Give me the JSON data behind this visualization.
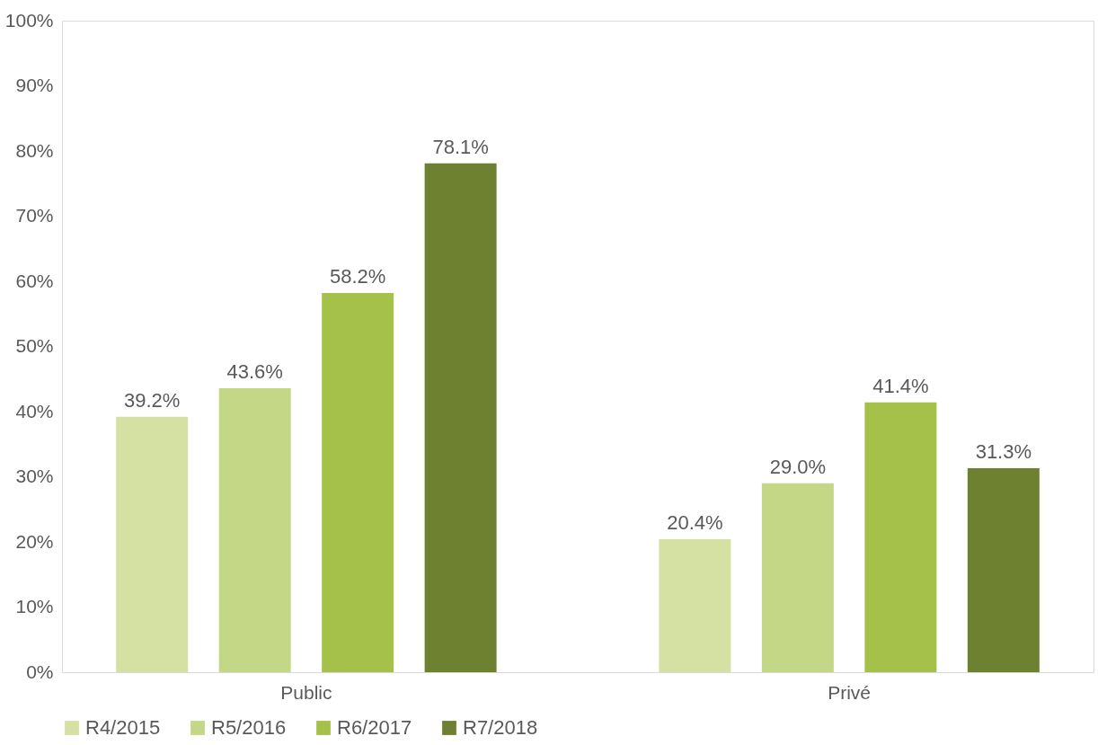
{
  "chart_data": {
    "type": "bar",
    "categories": [
      "Public",
      "Privé"
    ],
    "series": [
      {
        "name": "R4/2015",
        "color": "#d5e1a3",
        "values": [
          39.2,
          20.4
        ],
        "value_labels": [
          "39.2%",
          "20.4%"
        ]
      },
      {
        "name": "R5/2016",
        "color": "#c4d787",
        "values": [
          43.6,
          29.0
        ],
        "value_labels": [
          "43.6%",
          "29.0%"
        ]
      },
      {
        "name": "R6/2017",
        "color": "#a6c14a",
        "values": [
          58.2,
          41.4
        ],
        "value_labels": [
          "58.2%",
          "41.4%"
        ]
      },
      {
        "name": "R7/2018",
        "color": "#6e8130",
        "values": [
          78.1,
          31.3
        ],
        "value_labels": [
          "78.1%",
          "31.3%"
        ]
      }
    ],
    "ylim": [
      0,
      100
    ],
    "yticks": [
      {
        "value": 0,
        "label": "0%"
      },
      {
        "value": 10,
        "label": "10%"
      },
      {
        "value": 20,
        "label": "20%"
      },
      {
        "value": 30,
        "label": "30%"
      },
      {
        "value": 40,
        "label": "40%"
      },
      {
        "value": 50,
        "label": "50%"
      },
      {
        "value": 60,
        "label": "60%"
      },
      {
        "value": 70,
        "label": "70%"
      },
      {
        "value": 80,
        "label": "80%"
      },
      {
        "value": 90,
        "label": "90%"
      },
      {
        "value": 100,
        "label": "100%"
      }
    ],
    "grid": false,
    "legend": "bottom"
  }
}
